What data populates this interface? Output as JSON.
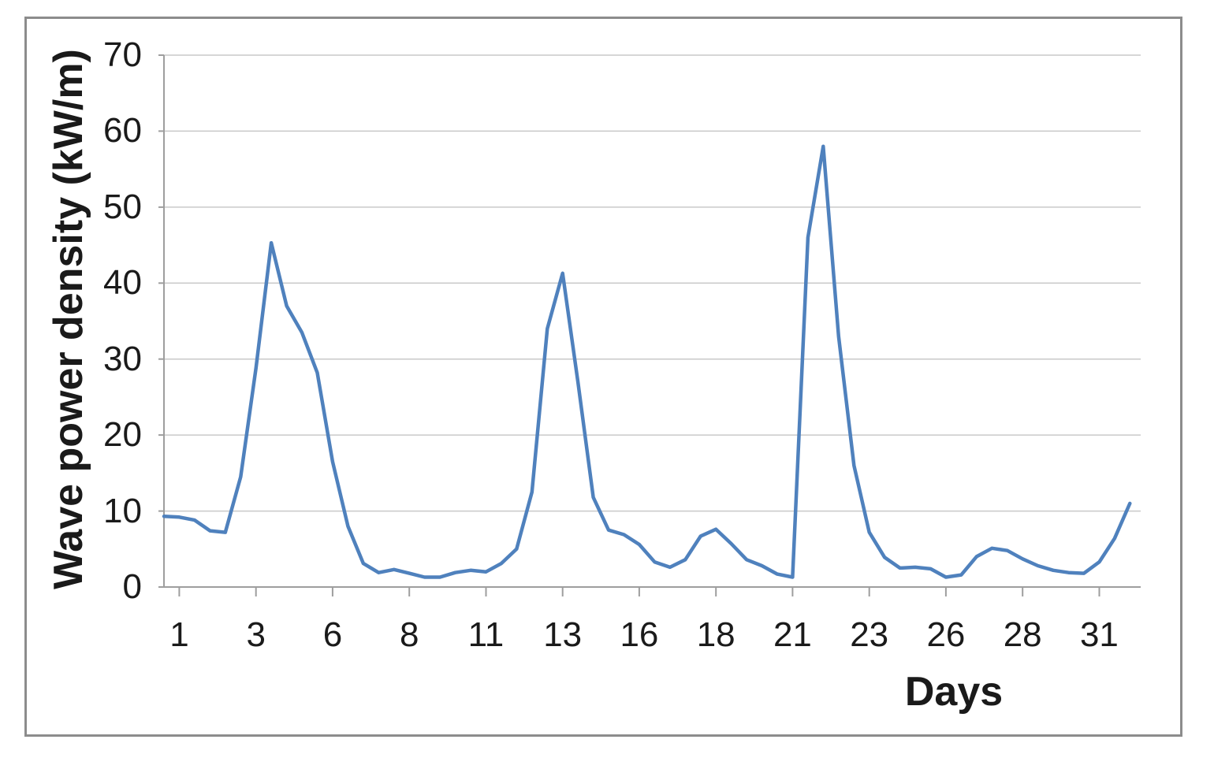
{
  "chart_data": {
    "type": "line",
    "title": "",
    "xlabel": "Days",
    "ylabel": "Wave power density (kW/m)",
    "x": [
      0.5,
      1,
      1.5,
      2,
      2.5,
      3,
      3.5,
      4,
      4.5,
      5,
      5.5,
      6,
      6.5,
      7,
      7.5,
      8,
      8.5,
      9,
      9.5,
      10,
      10.5,
      11,
      11.5,
      12,
      12.5,
      13,
      13.5,
      14,
      14.5,
      15,
      15.5,
      16,
      16.5,
      17,
      17.5,
      18,
      18.5,
      19,
      19.5,
      20,
      20.5,
      21,
      21.5,
      22,
      22.5,
      23,
      23.5,
      24,
      24.5,
      25,
      25.5,
      26,
      26.5,
      27,
      27.5,
      28,
      28.5,
      29,
      29.5,
      30,
      30.5,
      31,
      31.5,
      32
    ],
    "values": [
      9.3,
      9.2,
      8.8,
      7.4,
      7.2,
      14.5,
      28.8,
      45.3,
      37,
      33.5,
      28.2,
      16.5,
      8,
      3.1,
      1.9,
      2.3,
      1.8,
      1.3,
      1.3,
      1.9,
      2.2,
      2,
      3.1,
      5,
      12.5,
      34,
      41.3,
      27,
      11.8,
      7.5,
      6.9,
      5.6,
      3.3,
      2.6,
      3.6,
      6.7,
      7.6,
      5.7,
      3.6,
      2.8,
      1.7,
      1.3,
      46,
      58,
      33,
      16,
      7.2,
      3.9,
      2.5,
      2.6,
      2.4,
      1.3,
      1.6,
      4,
      5.1,
      4.8,
      3.7,
      2.8,
      2.2,
      1.9,
      1.8,
      3.3,
      6.4,
      11
    ],
    "x_tick_days": [
      1,
      3.5,
      6,
      8.5,
      11,
      13.5,
      16,
      18.5,
      21,
      23.5,
      26,
      28.5,
      31
    ],
    "x_tick_labels": [
      "1",
      "3",
      "6",
      "8",
      "11",
      "13",
      "16",
      "18",
      "21",
      "23",
      "26",
      "28",
      "31"
    ],
    "y_ticks": [
      0,
      10,
      20,
      30,
      40,
      50,
      60,
      70
    ],
    "ylim": [
      0,
      70
    ],
    "xlim": [
      0.5,
      32.4
    ],
    "grid": true,
    "legend": false,
    "series_name": "Wave power density",
    "colors": {
      "line": "#4F81BD",
      "gridline": "#c9c9c9",
      "axis": "#9e9e9e",
      "text": "#1a1a1a",
      "border": "#8c8c8c"
    }
  }
}
